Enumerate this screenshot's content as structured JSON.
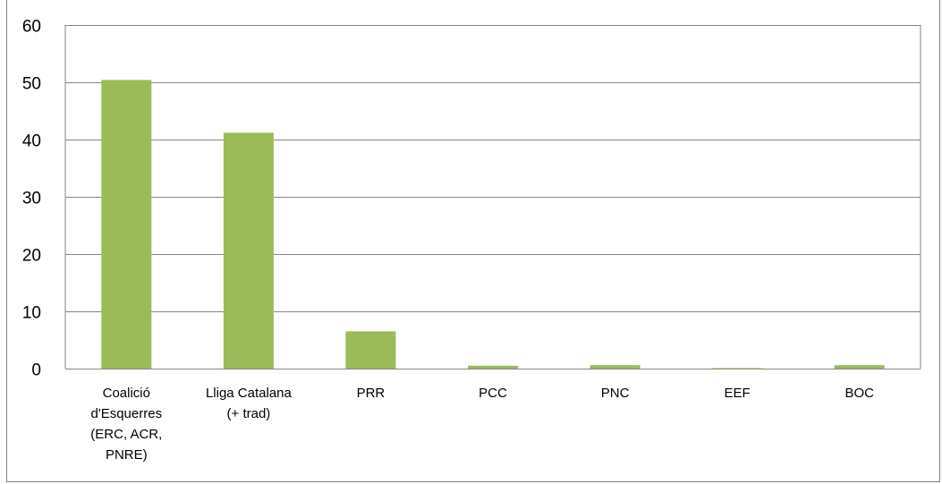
{
  "chart_data": {
    "type": "bar",
    "categories": [
      [
        "Coalició",
        "d'Esquerres",
        "(ERC, ACR,",
        "PNRE)"
      ],
      [
        "Lliga Catalana",
        "(+ trad)"
      ],
      [
        "PRR"
      ],
      [
        "PCC"
      ],
      [
        "PNC"
      ],
      [
        "EEF"
      ],
      [
        "BOC"
      ]
    ],
    "values": [
      50.4,
      41.2,
      6.5,
      0.5,
      0.6,
      0.1,
      0.6
    ],
    "ylim": [
      0,
      60
    ],
    "yticks": [
      "0",
      "10",
      "20",
      "30",
      "40",
      "50",
      "60"
    ],
    "grid": true,
    "bar_color": "#9bbb59",
    "grid_color": "#868686",
    "title": "",
    "xlabel": "",
    "ylabel": ""
  }
}
